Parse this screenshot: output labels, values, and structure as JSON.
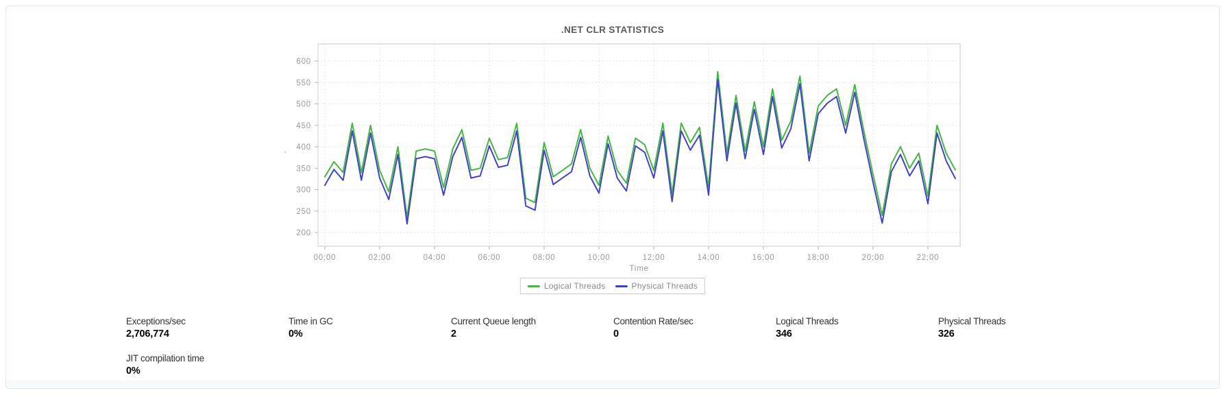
{
  "card": {
    "title": ".NET CLR STATISTICS"
  },
  "chart_data": {
    "type": "line",
    "title": ".NET CLR STATISTICS",
    "xlabel": "Time",
    "ylabel": ",",
    "ylim": [
      200,
      600
    ],
    "y_ticks": [
      600,
      550,
      500,
      450,
      400,
      350,
      300,
      250,
      200
    ],
    "x_tick_labels": [
      "00:00",
      "02:00",
      "04:00",
      "06:00",
      "08:00",
      "10:00",
      "12:00",
      "14:00",
      "16:00",
      "18:00",
      "20:00",
      "22:00"
    ],
    "x_start": "00:00",
    "x_minutes_per_point": 20,
    "grid": true,
    "legend_position": "bottom",
    "series": [
      {
        "name": "Logical Threads",
        "color": "#45b545",
        "values": [
          330,
          365,
          340,
          455,
          340,
          450,
          345,
          295,
          400,
          235,
          390,
          395,
          390,
          305,
          395,
          440,
          345,
          350,
          420,
          370,
          375,
          455,
          280,
          270,
          410,
          330,
          345,
          360,
          440,
          350,
          310,
          425,
          345,
          315,
          420,
          405,
          345,
          455,
          290,
          455,
          410,
          445,
          305,
          575,
          385,
          520,
          390,
          505,
          400,
          535,
          415,
          460,
          565,
          385,
          495,
          520,
          535,
          450,
          545,
          435,
          335,
          240,
          360,
          400,
          350,
          385,
          285,
          450,
          385,
          346
        ]
      },
      {
        "name": "Physical Threads",
        "color": "#3e44c5",
        "values": [
          310,
          347,
          322,
          437,
          322,
          432,
          327,
          277,
          382,
          220,
          372,
          377,
          372,
          287,
          377,
          422,
          327,
          332,
          402,
          352,
          357,
          437,
          262,
          252,
          392,
          312,
          327,
          342,
          422,
          332,
          292,
          407,
          327,
          297,
          402,
          387,
          327,
          437,
          272,
          437,
          392,
          427,
          287,
          557,
          367,
          502,
          372,
          487,
          382,
          517,
          397,
          442,
          547,
          367,
          477,
          502,
          517,
          432,
          527,
          417,
          317,
          222,
          342,
          382,
          332,
          367,
          267,
          432,
          367,
          326
        ]
      }
    ]
  },
  "stats": [
    {
      "label": "Exceptions/sec",
      "value": "2,706,774"
    },
    {
      "label": "Time in GC",
      "value": "0%"
    },
    {
      "label": "Current Queue length",
      "value": "2"
    },
    {
      "label": "Contention Rate/sec",
      "value": "0"
    },
    {
      "label": "Logical Threads",
      "value": "346"
    },
    {
      "label": "Physical Threads",
      "value": "326"
    },
    {
      "label": "JIT compilation time",
      "value": "0%"
    }
  ],
  "colors": {
    "logical_threads": "#45b545",
    "physical_threads": "#3e44c5",
    "axis_text": "#999999",
    "grid_line": "#e4e4e4",
    "plot_border": "#c9c9c9",
    "tick_mark": "#b0b0b0"
  }
}
